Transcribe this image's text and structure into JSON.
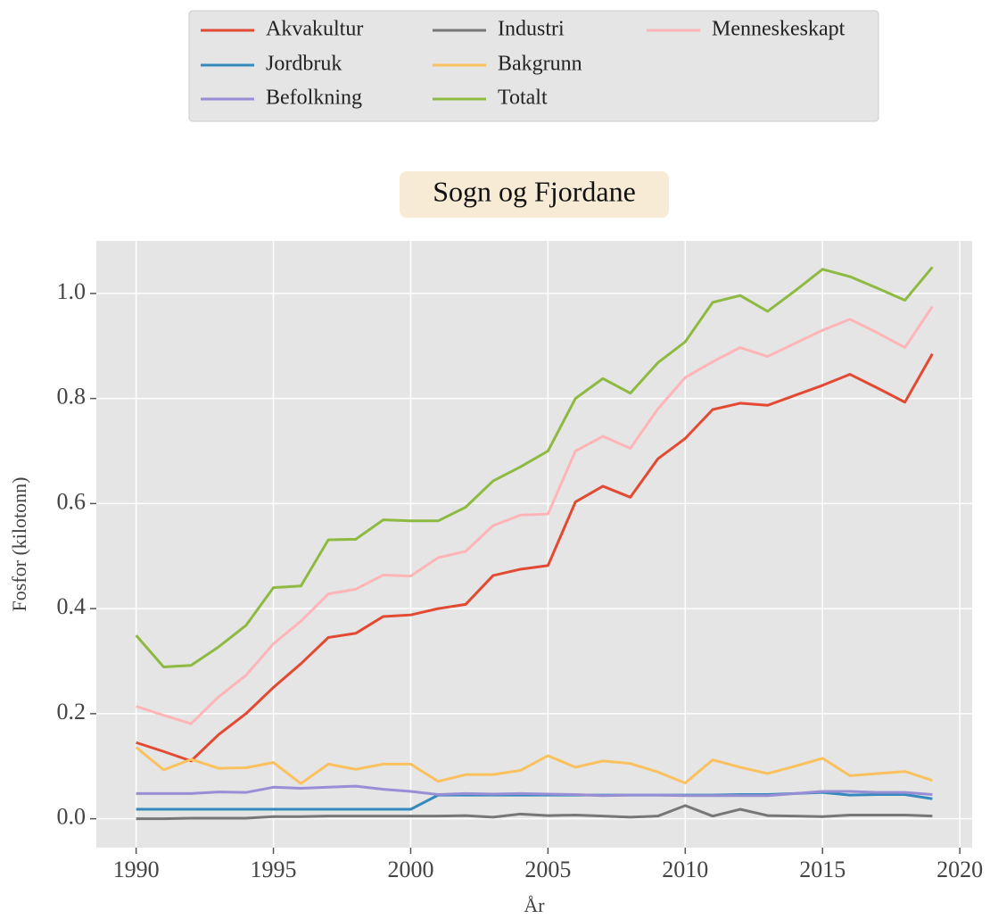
{
  "chart_data": {
    "type": "line",
    "title": "Sogn og Fjordane",
    "xlabel": "År",
    "ylabel": "Fosfor (kilotonn)",
    "x": [
      1990,
      1991,
      1992,
      1993,
      1994,
      1995,
      1996,
      1997,
      1998,
      1999,
      2000,
      2001,
      2002,
      2003,
      2004,
      2005,
      2006,
      2007,
      2008,
      2009,
      2010,
      2011,
      2012,
      2013,
      2014,
      2015,
      2016,
      2017,
      2018,
      2019
    ],
    "series": [
      {
        "name": "Akvakultur",
        "color": "#E24A33",
        "values": [
          0.145,
          0.128,
          0.11,
          0.16,
          0.2,
          0.25,
          0.295,
          0.345,
          0.353,
          0.385,
          0.388,
          0.4,
          0.408,
          0.463,
          0.475,
          0.482,
          0.603,
          0.633,
          0.612,
          0.685,
          0.724,
          0.779,
          0.791,
          0.787,
          0.806,
          0.825,
          0.846,
          0.82,
          0.793,
          0.885
        ]
      },
      {
        "name": "Jordbruk",
        "color": "#348ABD",
        "values": [
          0.018,
          0.018,
          0.018,
          0.018,
          0.018,
          0.018,
          0.018,
          0.018,
          0.018,
          0.018,
          0.018,
          0.045,
          0.045,
          0.045,
          0.045,
          0.045,
          0.045,
          0.045,
          0.045,
          0.045,
          0.045,
          0.045,
          0.046,
          0.046,
          0.048,
          0.05,
          0.045,
          0.046,
          0.046,
          0.038
        ]
      },
      {
        "name": "Befolkning",
        "color": "#988ED5",
        "values": [
          0.048,
          0.048,
          0.048,
          0.051,
          0.05,
          0.06,
          0.058,
          0.06,
          0.062,
          0.056,
          0.052,
          0.046,
          0.048,
          0.047,
          0.048,
          0.047,
          0.046,
          0.044,
          0.045,
          0.045,
          0.044,
          0.044,
          0.044,
          0.044,
          0.048,
          0.052,
          0.052,
          0.05,
          0.05,
          0.046
        ]
      },
      {
        "name": "Industri",
        "color": "#777777",
        "values": [
          0.0,
          0.0,
          0.001,
          0.001,
          0.001,
          0.004,
          0.004,
          0.005,
          0.005,
          0.005,
          0.005,
          0.005,
          0.006,
          0.003,
          0.009,
          0.006,
          0.007,
          0.005,
          0.003,
          0.005,
          0.025,
          0.005,
          0.018,
          0.006,
          0.005,
          0.004,
          0.007,
          0.007,
          0.007,
          0.005
        ]
      },
      {
        "name": "Bakgrunn",
        "color": "#FBC15E",
        "values": [
          0.136,
          0.093,
          0.113,
          0.096,
          0.097,
          0.107,
          0.067,
          0.104,
          0.094,
          0.104,
          0.104,
          0.071,
          0.084,
          0.084,
          0.092,
          0.12,
          0.098,
          0.11,
          0.105,
          0.089,
          0.068,
          0.112,
          0.098,
          0.086,
          0.1,
          0.115,
          0.082,
          0.086,
          0.09,
          0.073
        ]
      },
      {
        "name": "Totalt",
        "color": "#8EBA42",
        "values": [
          0.349,
          0.289,
          0.292,
          0.327,
          0.368,
          0.44,
          0.443,
          0.531,
          0.532,
          0.569,
          0.567,
          0.567,
          0.593,
          0.643,
          0.67,
          0.7,
          0.8,
          0.838,
          0.81,
          0.868,
          0.908,
          0.983,
          0.996,
          0.966,
          1.005,
          1.046,
          1.032,
          1.01,
          0.987,
          1.05
        ]
      },
      {
        "name": "Menneskeskapt",
        "color": "#FFB5B8",
        "values": [
          0.214,
          0.197,
          0.181,
          0.232,
          0.273,
          0.333,
          0.376,
          0.428,
          0.437,
          0.464,
          0.462,
          0.497,
          0.509,
          0.558,
          0.578,
          0.58,
          0.7,
          0.728,
          0.705,
          0.78,
          0.84,
          0.87,
          0.897,
          0.88,
          0.905,
          0.93,
          0.951,
          0.925,
          0.897,
          0.975
        ]
      }
    ],
    "xlim": [
      1988.55,
      2020.45
    ],
    "xticks": [
      1990,
      1995,
      2000,
      2005,
      2010,
      2015,
      2020
    ],
    "ylim": [
      -0.055,
      1.1
    ],
    "yticks": [
      {
        "value": 0,
        "label": "0.0"
      },
      {
        "value": 0.2,
        "label": "0.2"
      },
      {
        "value": 0.4,
        "label": "0.4"
      },
      {
        "value": 0.6,
        "label": "0.6"
      },
      {
        "value": 0.8,
        "label": "0.8"
      },
      {
        "value": 1.0,
        "label": "1.0"
      }
    ],
    "grid": true
  }
}
